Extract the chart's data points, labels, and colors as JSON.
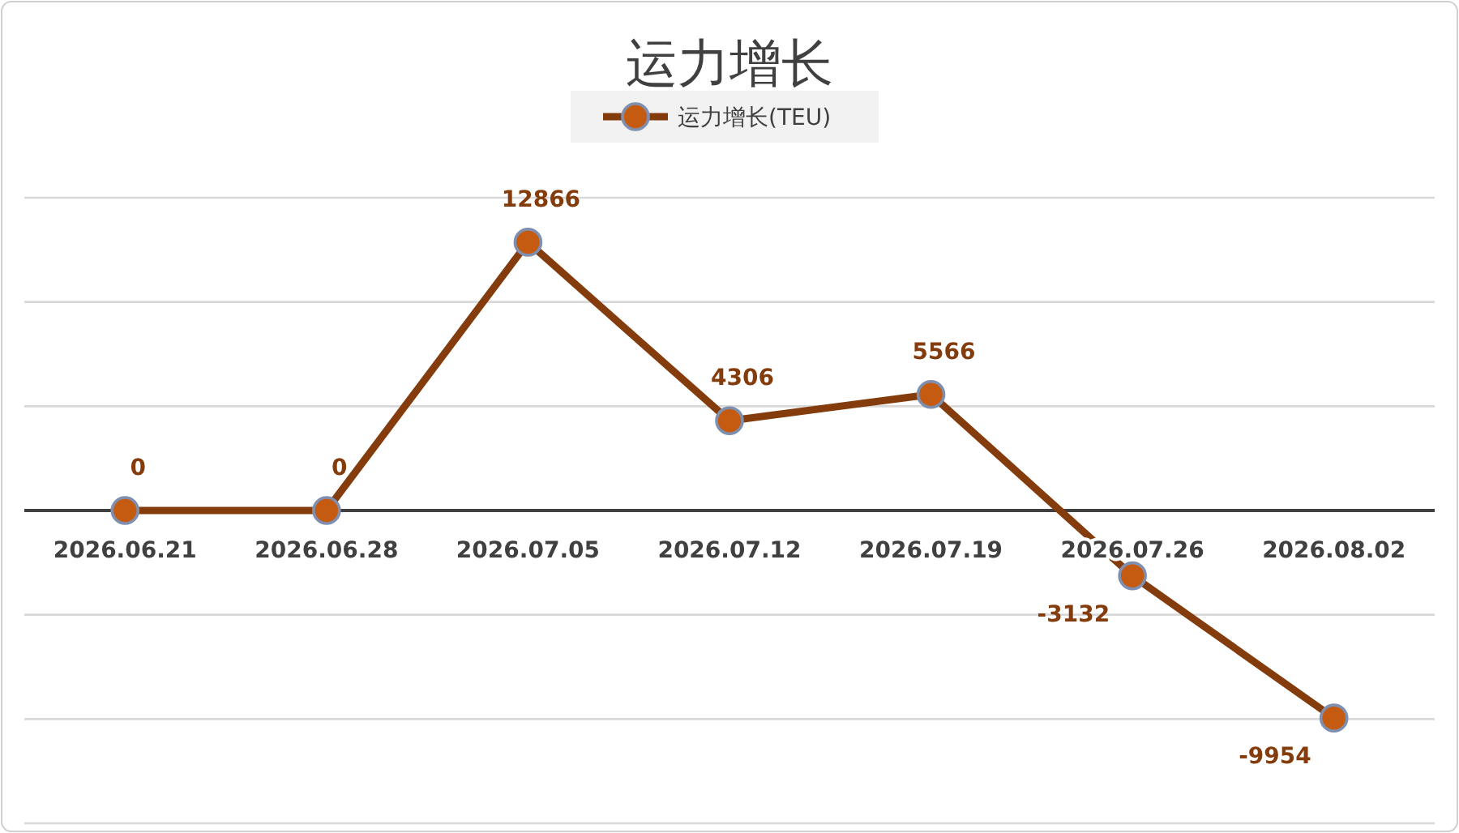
{
  "chart_data": {
    "type": "line",
    "title": "运力增长",
    "categories": [
      "2026.06.21",
      "2026.06.28",
      "2026.07.05",
      "2026.07.12",
      "2026.07.19",
      "2026.07.26",
      "2026.08.02"
    ],
    "series": [
      {
        "name": "运力增长(TEU)",
        "color": "#843c0c",
        "values": [
          0,
          0,
          12866,
          4306,
          5566,
          -3132,
          -9954
        ]
      }
    ],
    "ylim": [
      -15000,
      15000
    ],
    "yticks": [
      {
        "value": -15000,
        "label": null
      },
      {
        "value": -10000,
        "label": null
      },
      {
        "value": -5000,
        "label": null
      },
      {
        "value": 0,
        "label": null
      },
      {
        "value": 5000,
        "label": null
      },
      {
        "value": 10000,
        "label": null
      },
      {
        "value": 15000,
        "label": null
      }
    ],
    "grid": "y",
    "tick_labels": "x",
    "legend": "top",
    "marker": "circle",
    "line_style": "solid",
    "data_labels": true
  }
}
